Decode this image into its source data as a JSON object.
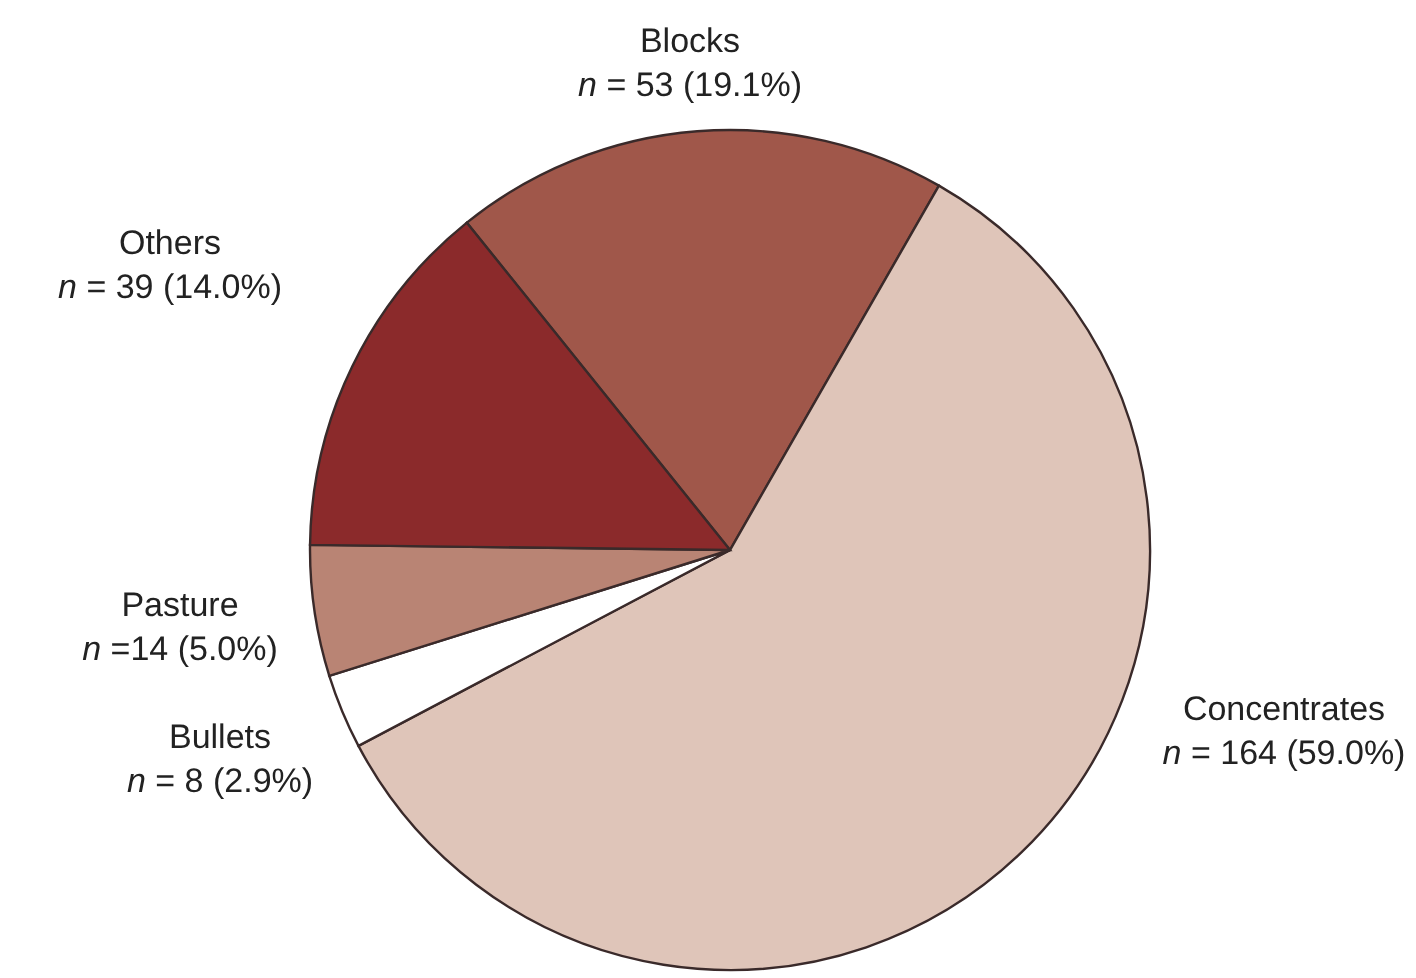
{
  "chart_data": {
    "type": "pie",
    "categories": [
      "Blocks",
      "Concentrates",
      "Bullets",
      "Pasture",
      "Others"
    ],
    "values": [
      53,
      164,
      8,
      14,
      39
    ],
    "value_labels": [
      "n = 53 (19.1%)",
      "n = 164 (59.0%)",
      "n = 8 (2.9%)",
      "n =14 (5.0%)",
      "n = 39 (14.0%)"
    ],
    "colors": [
      "#a0574a",
      "#dfc5b9",
      "#ffffff",
      "#b98474",
      "#8b2a2b"
    ]
  }
}
